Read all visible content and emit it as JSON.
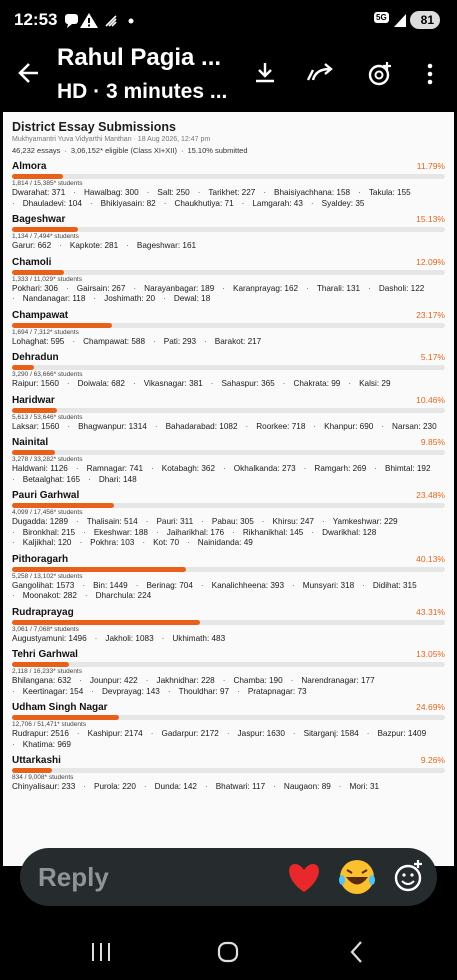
{
  "status_bar": {
    "time": "12:53",
    "network": "5G",
    "battery": "81"
  },
  "header": {
    "title": "Rahul Pagia ...",
    "subtitle": "HD · 3 minutes ..."
  },
  "document": {
    "title": "District Essay Submissions",
    "subtitle": "Mukhyamantri Yuva Vidyarthi Manthan · 18 Aug 2026, 12:47 pm",
    "stats": [
      "46,232 essays",
      "3,06,152* eligible (Class XI+XII)",
      "15.10% submitted"
    ],
    "districts": [
      {
        "name": "Almora",
        "pct": 11.79,
        "pct_label": "11.79%",
        "students": "1,814 / 15,385* students",
        "blocks": [
          "Dwarahat: 371",
          "Hawalbag: 300",
          "Salt: 250",
          "Tarikhet: 227",
          "Bhaisiyachhana: 158",
          "Takula: 155",
          "Dhauladevi: 104",
          "Bhikiyasain: 82",
          "Chaukhutiya: 71",
          "Lamgarah: 43",
          "Syaldey: 35"
        ]
      },
      {
        "name": "Bageshwar",
        "pct": 15.13,
        "pct_label": "15.13%",
        "students": "1,134 / 7,494* students",
        "blocks": [
          "Garur: 662",
          "Kapkote: 281",
          "Bageshwar: 161"
        ]
      },
      {
        "name": "Chamoli",
        "pct": 12.09,
        "pct_label": "12.09%",
        "students": "1,333 / 11,029* students",
        "blocks": [
          "Pokhari: 306",
          "Gairsain: 267",
          "Narayanbagar: 189",
          "Karanprayag: 162",
          "Tharali: 131",
          "Dasholi: 122",
          "Nandanagar: 118",
          "Joshimath: 20",
          "Dewal: 18"
        ]
      },
      {
        "name": "Champawat",
        "pct": 23.17,
        "pct_label": "23.17%",
        "students": "1,694 / 7,312* students",
        "blocks": [
          "Lohaghat: 595",
          "Champawat: 588",
          "Pati: 293",
          "Barakot: 217"
        ]
      },
      {
        "name": "Dehradun",
        "pct": 5.17,
        "pct_label": "5.17%",
        "students": "3,290 / 63,666* students",
        "blocks": [
          "Raipur: 1560",
          "Doiwala: 682",
          "Vikasnagar: 381",
          "Sahaspur: 365",
          "Chakrata: 99",
          "Kalsi: 29"
        ]
      },
      {
        "name": "Haridwar",
        "pct": 10.46,
        "pct_label": "10.46%",
        "students": "5,613 / 53,646* students",
        "blocks": [
          "Laksar: 1560",
          "Bhagwanpur: 1314",
          "Bahadarabad: 1082",
          "Roorkee: 718",
          "Khanpur: 690",
          "Narsan: 230"
        ]
      },
      {
        "name": "Nainital",
        "pct": 9.85,
        "pct_label": "9.85%",
        "students": "3,278 / 33,282* students",
        "blocks": [
          "Haldwani: 1126",
          "Ramnagar: 741",
          "Kotabagh: 362",
          "Okhalkanda: 273",
          "Ramgarh: 269",
          "Bhimtal: 192",
          "Betaalghat: 165",
          "Dhari: 148"
        ]
      },
      {
        "name": "Pauri Garhwal",
        "pct": 23.48,
        "pct_label": "23.48%",
        "students": "4,099 / 17,456* students",
        "blocks": [
          "Dugadda: 1289",
          "Thalisain: 514",
          "Pauri: 311",
          "Pabau: 305",
          "Khirsu: 247",
          "Yamkeshwar: 229",
          "Bironkhal: 215",
          "Ekeshwar: 188",
          "Jaiharikhal: 176",
          "Rikhanikhal: 145",
          "Dwarikhal: 128",
          "Kaljikhal: 120",
          "Pokhra: 103",
          "Kot: 70",
          "Nainidanda: 49"
        ]
      },
      {
        "name": "Pithoragarh",
        "pct": 40.13,
        "pct_label": "40.13%",
        "students": "5,258 / 13,102* students",
        "blocks": [
          "Gangolihat: 1573",
          "Bin: 1449",
          "Berinag: 704",
          "Kanalichheena: 393",
          "Munsyari: 318",
          "Didihat: 315",
          "Moonakot: 282",
          "Dharchula: 224"
        ]
      },
      {
        "name": "Rudraprayag",
        "pct": 43.31,
        "pct_label": "43.31%",
        "students": "3,061 / 7,068* students",
        "blocks": [
          "Augustyamuni: 1496",
          "Jakholi: 1083",
          "Ukhimath: 483"
        ]
      },
      {
        "name": "Tehri Garhwal",
        "pct": 13.05,
        "pct_label": "13.05%",
        "students": "2,118 / 16,233* students",
        "blocks": [
          "Bhilangana: 632",
          "Jounpur: 422",
          "Jakhnidhar: 228",
          "Chamba: 190",
          "Narendranagar: 177",
          "Keertinagar: 154",
          "Devprayag: 143",
          "Thouldhar: 97",
          "Pratapnagar: 73"
        ]
      },
      {
        "name": "Udham Singh Nagar",
        "pct": 24.69,
        "pct_label": "24.69%",
        "students": "12,706 / 51,471* students",
        "blocks": [
          "Rudrapur: 2516",
          "Kashipur: 2174",
          "Gadarpur: 2172",
          "Jaspur: 1630",
          "Sitarganj: 1584",
          "Bazpur: 1409",
          "Khatima: 969"
        ]
      },
      {
        "name": "Uttarkashi",
        "pct": 9.26,
        "pct_label": "9.26%",
        "students": "834 / 9,008* students",
        "blocks": [
          "Chinyalisaur: 233",
          "Purola: 220",
          "Dunda: 142",
          "Bhatwari: 117",
          "Naugaon: 89",
          "Mori: 31"
        ]
      }
    ]
  },
  "reply_bar": {
    "placeholder": "Reply"
  }
}
